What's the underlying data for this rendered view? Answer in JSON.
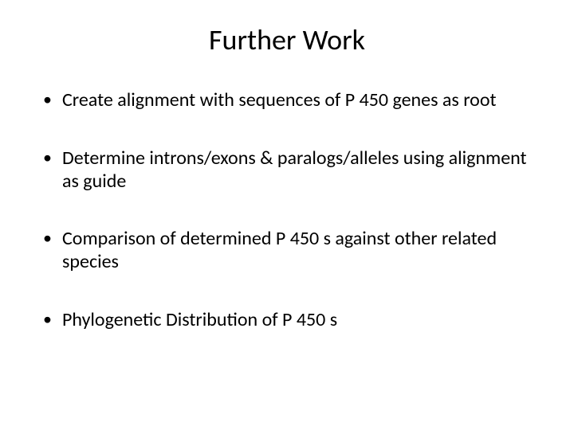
{
  "slide": {
    "title": "Further Work",
    "bullets": [
      "Create alignment with sequences of P 450 genes as root",
      "Determine introns/exons & paralogs/alleles using alignment as guide",
      "Comparison of determined P 450 s against other related species",
      "Phylogenetic Distribution of P 450 s"
    ],
    "title_fontsize": 36,
    "body_fontsize": 24,
    "background_color": "#ffffff",
    "text_color": "#000000",
    "font_family": "Calibri"
  }
}
